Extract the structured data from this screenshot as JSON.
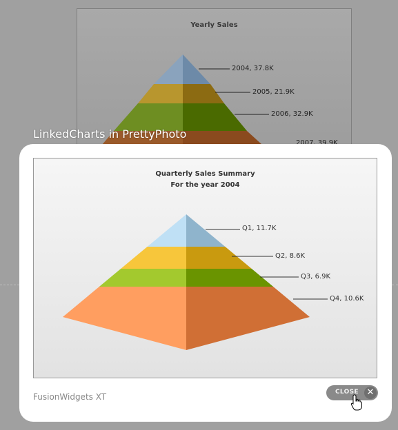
{
  "background_chart": {
    "title": "Yearly Sales",
    "labels": [
      "2004, 37.8K",
      "2005, 21.9K",
      "2006, 32.9K",
      "2007, 39.9K"
    ]
  },
  "lightbox": {
    "title": "LinkedCharts in PrettyPhoto",
    "caption": "FusionWidgets XT",
    "close_label": "CLOSE",
    "close_icon": "close-x-icon"
  },
  "chart_data": {
    "type": "pyramid",
    "title": "Quarterly Sales Summary",
    "subtitle": "For the year 2004",
    "categories": [
      "Q1",
      "Q2",
      "Q3",
      "Q4"
    ],
    "values": [
      11.7,
      8.6,
      6.9,
      10.6
    ],
    "unit": "K",
    "labels": [
      "Q1, 11.7K",
      "Q2, 8.6K",
      "Q3, 6.9K",
      "Q4, 10.6K"
    ],
    "colors": {
      "Q1": [
        "#bfe0f5",
        "#8fb4cc"
      ],
      "Q2": [
        "#f7c63b",
        "#c99a0f"
      ],
      "Q3": [
        "#a3c92e",
        "#6a9400"
      ],
      "Q4": [
        "#ff9e60",
        "#d06f35"
      ]
    }
  }
}
